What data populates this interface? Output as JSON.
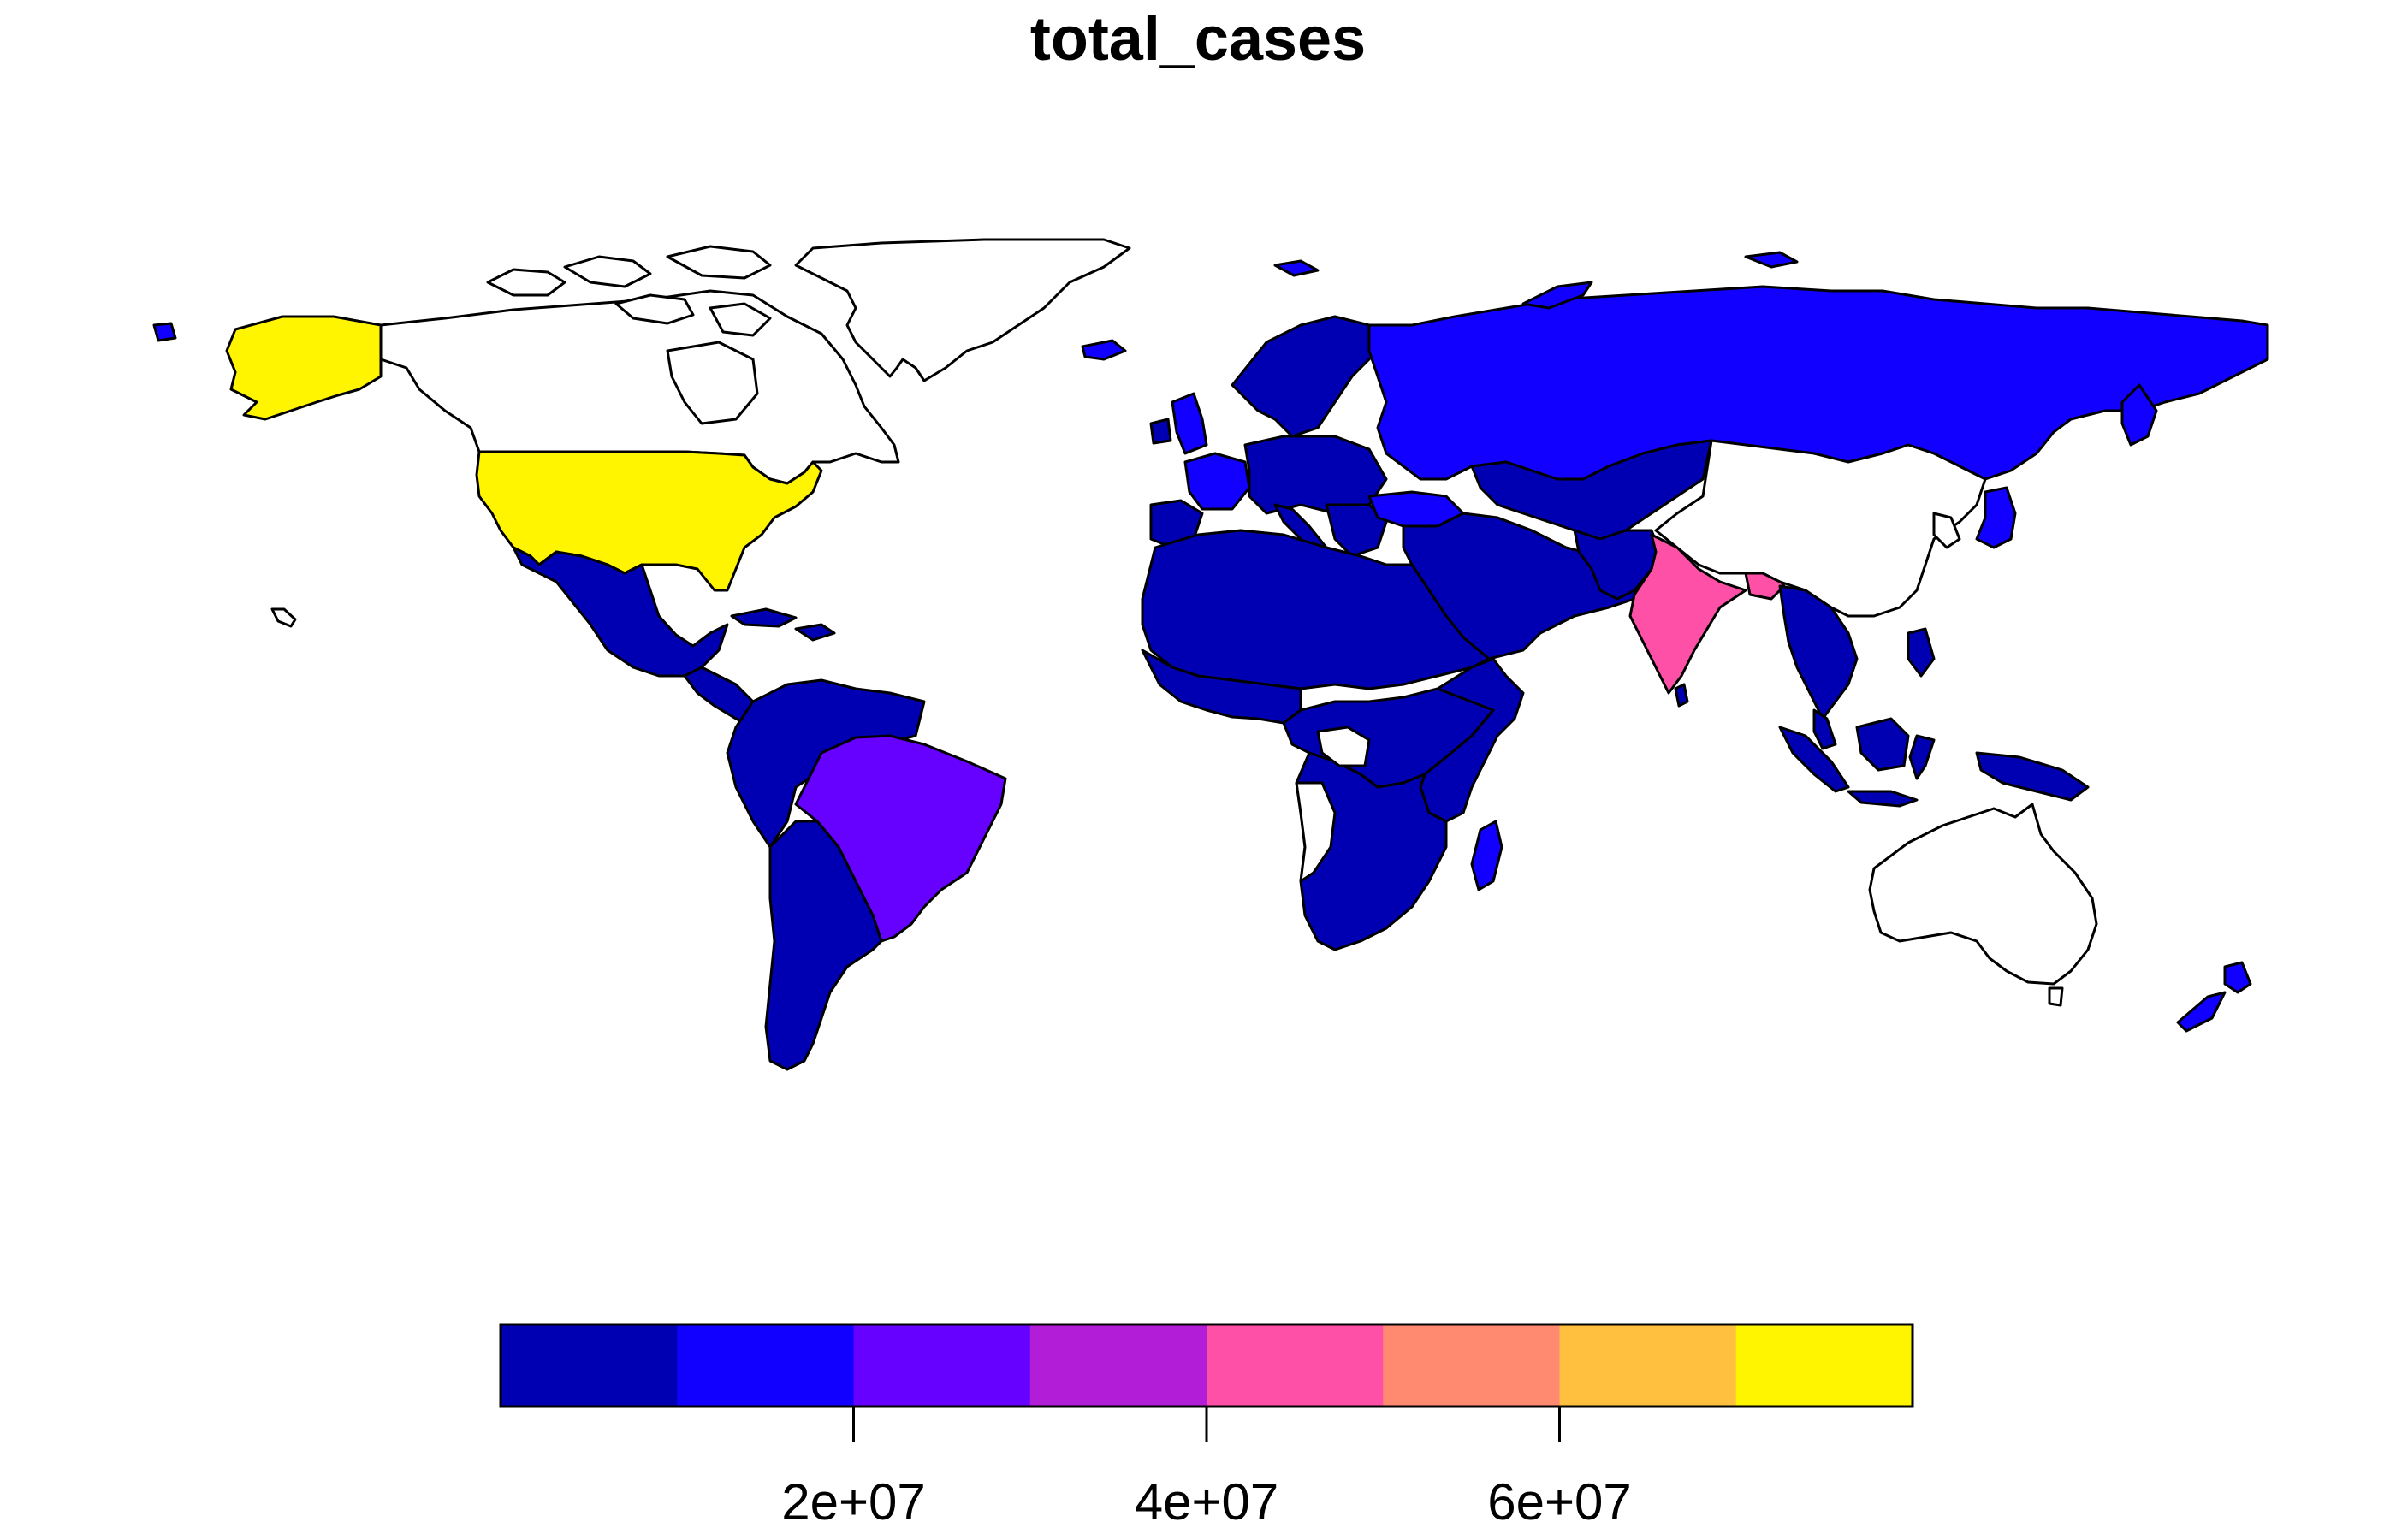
{
  "title": "total_cases",
  "legend": {
    "tick_labels": [
      "2e+07",
      "4e+07",
      "6e+07"
    ],
    "tick_values": [
      20000000,
      40000000,
      60000000
    ],
    "range": [
      0,
      80000000
    ],
    "colors": [
      "#0000B2",
      "#1100FF",
      "#6600FF",
      "#B21ED8",
      "#FF50A8",
      "#FF8A70",
      "#FFC040",
      "#FFF500"
    ]
  },
  "colors": {
    "background": "#FFFFFF",
    "no_data": "#FFFFFF",
    "border": "#000000"
  },
  "chart_data": {
    "type": "choropleth",
    "title": "total_cases",
    "variable": "total_cases",
    "scale_range": [
      0,
      80000000
    ],
    "breaks": [
      0,
      10000000,
      20000000,
      30000000,
      40000000,
      50000000,
      60000000,
      70000000,
      80000000
    ],
    "legend_ticks": [
      20000000,
      40000000,
      60000000
    ],
    "legend_tick_labels": [
      "2e+07",
      "4e+07",
      "6e+07"
    ],
    "legend_placement": "bottom",
    "palette": [
      "#0000B2",
      "#1100FF",
      "#6600FF",
      "#B21ED8",
      "#FF50A8",
      "#FF8A70",
      "#FFC040",
      "#FFF500"
    ],
    "regions": [
      {
        "region": "United States",
        "bin": 7,
        "color": "#FFF500"
      },
      {
        "region": "India",
        "bin": 4,
        "color": "#FF50A8"
      },
      {
        "region": "Brazil",
        "bin": 2,
        "color": "#6600FF"
      },
      {
        "region": "Russia",
        "bin": 1,
        "color": "#1100FF"
      },
      {
        "region": "United Kingdom",
        "bin": 1,
        "color": "#1100FF"
      },
      {
        "region": "France",
        "bin": 1,
        "color": "#1100FF"
      },
      {
        "region": "Turkey",
        "bin": 1,
        "color": "#1100FF"
      },
      {
        "region": "Argentina",
        "bin": 0,
        "color": "#0000B2"
      },
      {
        "region": "Mexico",
        "bin": 0,
        "color": "#0000B2"
      },
      {
        "region": "Africa",
        "bin": 0,
        "color": "#0000B2"
      },
      {
        "region": "Middle East",
        "bin": 0,
        "color": "#0000B2"
      },
      {
        "region": "Southeast Asia",
        "bin": 0,
        "color": "#0000B2"
      },
      {
        "region": "Canada",
        "bin": null,
        "color": "#FFFFFF"
      },
      {
        "region": "China",
        "bin": null,
        "color": "#FFFFFF"
      },
      {
        "region": "Australia",
        "bin": null,
        "color": "#FFFFFF"
      },
      {
        "region": "Greenland",
        "bin": null,
        "color": "#FFFFFF"
      }
    ]
  }
}
